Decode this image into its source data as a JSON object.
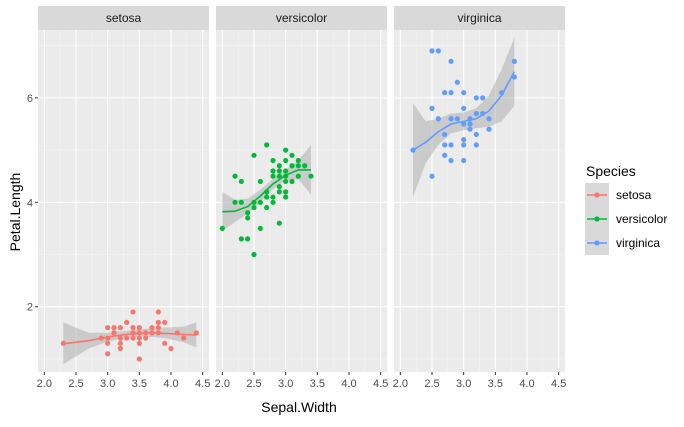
{
  "chart_data": {
    "type": "scatter",
    "facet_by": "Species",
    "xlabel": "Sepal.Width",
    "ylabel": "Petal.Length",
    "xlim": [
      1.9,
      4.6
    ],
    "ylim": [
      0.75,
      7.3
    ],
    "x_ticks": [
      2.0,
      2.5,
      3.0,
      3.5,
      4.0,
      4.5
    ],
    "x_tick_labels": [
      "2.0",
      "2.5",
      "3.0",
      "3.5",
      "4.0",
      "4.5"
    ],
    "y_ticks": [
      2,
      4,
      6
    ],
    "y_tick_labels": [
      "2",
      "4",
      "6"
    ],
    "grid": true,
    "smoother": "loess with confidence band",
    "legend": {
      "title": "Species",
      "position": "right",
      "entries": [
        "setosa",
        "versicolor",
        "virginica"
      ]
    },
    "series": [
      {
        "name": "setosa",
        "color": "#F8766D",
        "points": [
          [
            2.3,
            1.3
          ],
          [
            2.9,
            1.4
          ],
          [
            3.0,
            1.1
          ],
          [
            3.0,
            1.3
          ],
          [
            3.0,
            1.4
          ],
          [
            3.0,
            1.6
          ],
          [
            3.1,
            1.5
          ],
          [
            3.1,
            1.6
          ],
          [
            3.1,
            1.5
          ],
          [
            3.2,
            1.2
          ],
          [
            3.2,
            1.3
          ],
          [
            3.2,
            1.4
          ],
          [
            3.2,
            1.6
          ],
          [
            3.3,
            1.4
          ],
          [
            3.3,
            1.7
          ],
          [
            3.4,
            1.4
          ],
          [
            3.4,
            1.5
          ],
          [
            3.4,
            1.6
          ],
          [
            3.4,
            1.9
          ],
          [
            3.5,
            1.0
          ],
          [
            3.5,
            1.3
          ],
          [
            3.5,
            1.4
          ],
          [
            3.5,
            1.5
          ],
          [
            3.5,
            1.6
          ],
          [
            3.6,
            1.4
          ],
          [
            3.6,
            1.5
          ],
          [
            3.7,
            1.5
          ],
          [
            3.7,
            1.6
          ],
          [
            3.8,
            1.5
          ],
          [
            3.8,
            1.6
          ],
          [
            3.8,
            1.7
          ],
          [
            3.8,
            1.9
          ],
          [
            3.9,
            1.3
          ],
          [
            3.9,
            1.7
          ],
          [
            4.0,
            1.2
          ],
          [
            4.1,
            1.5
          ],
          [
            4.2,
            1.4
          ],
          [
            4.4,
            1.5
          ]
        ],
        "smooth": [
          [
            2.3,
            1.29
          ],
          [
            2.7,
            1.35
          ],
          [
            3.0,
            1.42
          ],
          [
            3.3,
            1.47
          ],
          [
            3.6,
            1.5
          ],
          [
            3.9,
            1.49
          ],
          [
            4.2,
            1.47
          ],
          [
            4.4,
            1.46
          ]
        ],
        "band_upper": [
          [
            2.3,
            1.7
          ],
          [
            2.7,
            1.5
          ],
          [
            3.0,
            1.5
          ],
          [
            3.3,
            1.54
          ],
          [
            3.6,
            1.58
          ],
          [
            3.9,
            1.6
          ],
          [
            4.2,
            1.62
          ],
          [
            4.4,
            1.7
          ]
        ],
        "band_lower": [
          [
            2.3,
            0.9
          ],
          [
            2.7,
            1.2
          ],
          [
            3.0,
            1.33
          ],
          [
            3.3,
            1.41
          ],
          [
            3.6,
            1.43
          ],
          [
            3.9,
            1.4
          ],
          [
            4.2,
            1.32
          ],
          [
            4.4,
            1.22
          ]
        ]
      },
      {
        "name": "versicolor",
        "color": "#00BA38",
        "points": [
          [
            2.0,
            3.5
          ],
          [
            2.2,
            4.0
          ],
          [
            2.2,
            4.5
          ],
          [
            2.3,
            3.3
          ],
          [
            2.3,
            4.0
          ],
          [
            2.3,
            4.4
          ],
          [
            2.4,
            3.3
          ],
          [
            2.4,
            3.7
          ],
          [
            2.4,
            3.8
          ],
          [
            2.5,
            3.0
          ],
          [
            2.5,
            3.9
          ],
          [
            2.5,
            4.0
          ],
          [
            2.5,
            4.9
          ],
          [
            2.6,
            3.5
          ],
          [
            2.6,
            4.0
          ],
          [
            2.6,
            4.4
          ],
          [
            2.7,
            3.9
          ],
          [
            2.7,
            4.1
          ],
          [
            2.7,
            4.2
          ],
          [
            2.7,
            5.1
          ],
          [
            2.8,
            4.0
          ],
          [
            2.8,
            4.1
          ],
          [
            2.8,
            4.5
          ],
          [
            2.8,
            4.6
          ],
          [
            2.8,
            4.8
          ],
          [
            2.9,
            3.6
          ],
          [
            2.9,
            4.2
          ],
          [
            2.9,
            4.3
          ],
          [
            2.9,
            4.5
          ],
          [
            2.9,
            4.6
          ],
          [
            2.9,
            4.7
          ],
          [
            3.0,
            4.1
          ],
          [
            3.0,
            4.2
          ],
          [
            3.0,
            4.4
          ],
          [
            3.0,
            4.5
          ],
          [
            3.0,
            4.6
          ],
          [
            3.0,
            4.8
          ],
          [
            3.0,
            5.0
          ],
          [
            3.1,
            4.4
          ],
          [
            3.1,
            4.7
          ],
          [
            3.1,
            4.9
          ],
          [
            3.2,
            4.5
          ],
          [
            3.2,
            4.7
          ],
          [
            3.2,
            4.8
          ],
          [
            3.3,
            4.7
          ],
          [
            3.4,
            4.5
          ]
        ],
        "smooth": [
          [
            2.0,
            3.82
          ],
          [
            2.2,
            3.83
          ],
          [
            2.4,
            3.92
          ],
          [
            2.6,
            4.12
          ],
          [
            2.8,
            4.35
          ],
          [
            3.0,
            4.52
          ],
          [
            3.2,
            4.62
          ],
          [
            3.4,
            4.62
          ]
        ],
        "band_upper": [
          [
            2.0,
            4.2
          ],
          [
            2.2,
            4.05
          ],
          [
            2.4,
            4.07
          ],
          [
            2.6,
            4.24
          ],
          [
            2.8,
            4.45
          ],
          [
            3.0,
            4.62
          ],
          [
            3.2,
            4.8
          ],
          [
            3.4,
            5.1
          ]
        ],
        "band_lower": [
          [
            2.0,
            3.45
          ],
          [
            2.2,
            3.62
          ],
          [
            2.4,
            3.78
          ],
          [
            2.6,
            4.0
          ],
          [
            2.8,
            4.25
          ],
          [
            3.0,
            4.42
          ],
          [
            3.2,
            4.44
          ],
          [
            3.4,
            4.15
          ]
        ]
      },
      {
        "name": "virginica",
        "color": "#619CFF",
        "points": [
          [
            2.2,
            5.0
          ],
          [
            2.5,
            4.5
          ],
          [
            2.5,
            5.8
          ],
          [
            2.5,
            6.9
          ],
          [
            2.6,
            5.6
          ],
          [
            2.6,
            6.9
          ],
          [
            2.7,
            4.9
          ],
          [
            2.7,
            5.1
          ],
          [
            2.7,
            5.3
          ],
          [
            2.7,
            6.1
          ],
          [
            2.8,
            4.8
          ],
          [
            2.8,
            5.1
          ],
          [
            2.8,
            5.6
          ],
          [
            2.8,
            6.1
          ],
          [
            2.8,
            6.7
          ],
          [
            2.9,
            5.6
          ],
          [
            2.9,
            6.3
          ],
          [
            3.0,
            4.8
          ],
          [
            3.0,
            5.1
          ],
          [
            3.0,
            5.2
          ],
          [
            3.0,
            5.5
          ],
          [
            3.0,
            5.8
          ],
          [
            3.0,
            6.1
          ],
          [
            3.1,
            5.4
          ],
          [
            3.1,
            5.5
          ],
          [
            3.1,
            5.6
          ],
          [
            3.2,
            5.1
          ],
          [
            3.2,
            5.3
          ],
          [
            3.2,
            5.7
          ],
          [
            3.2,
            6.0
          ],
          [
            3.3,
            5.7
          ],
          [
            3.3,
            6.0
          ],
          [
            3.4,
            5.4
          ],
          [
            3.4,
            5.6
          ],
          [
            3.6,
            6.1
          ],
          [
            3.8,
            6.4
          ],
          [
            3.8,
            6.7
          ]
        ],
        "smooth": [
          [
            2.2,
            5.0
          ],
          [
            2.4,
            5.15
          ],
          [
            2.6,
            5.35
          ],
          [
            2.8,
            5.5
          ],
          [
            3.0,
            5.55
          ],
          [
            3.2,
            5.6
          ],
          [
            3.4,
            5.75
          ],
          [
            3.6,
            6.05
          ],
          [
            3.8,
            6.5
          ]
        ],
        "band_upper": [
          [
            2.2,
            5.9
          ],
          [
            2.4,
            5.55
          ],
          [
            2.6,
            5.6
          ],
          [
            2.8,
            5.7
          ],
          [
            3.0,
            5.72
          ],
          [
            3.2,
            5.8
          ],
          [
            3.4,
            6.05
          ],
          [
            3.6,
            6.55
          ],
          [
            3.8,
            7.15
          ]
        ],
        "band_lower": [
          [
            2.2,
            4.1
          ],
          [
            2.4,
            4.75
          ],
          [
            2.6,
            5.1
          ],
          [
            2.8,
            5.32
          ],
          [
            3.0,
            5.38
          ],
          [
            3.2,
            5.42
          ],
          [
            3.4,
            5.45
          ],
          [
            3.6,
            5.55
          ],
          [
            3.8,
            5.85
          ]
        ]
      }
    ]
  }
}
